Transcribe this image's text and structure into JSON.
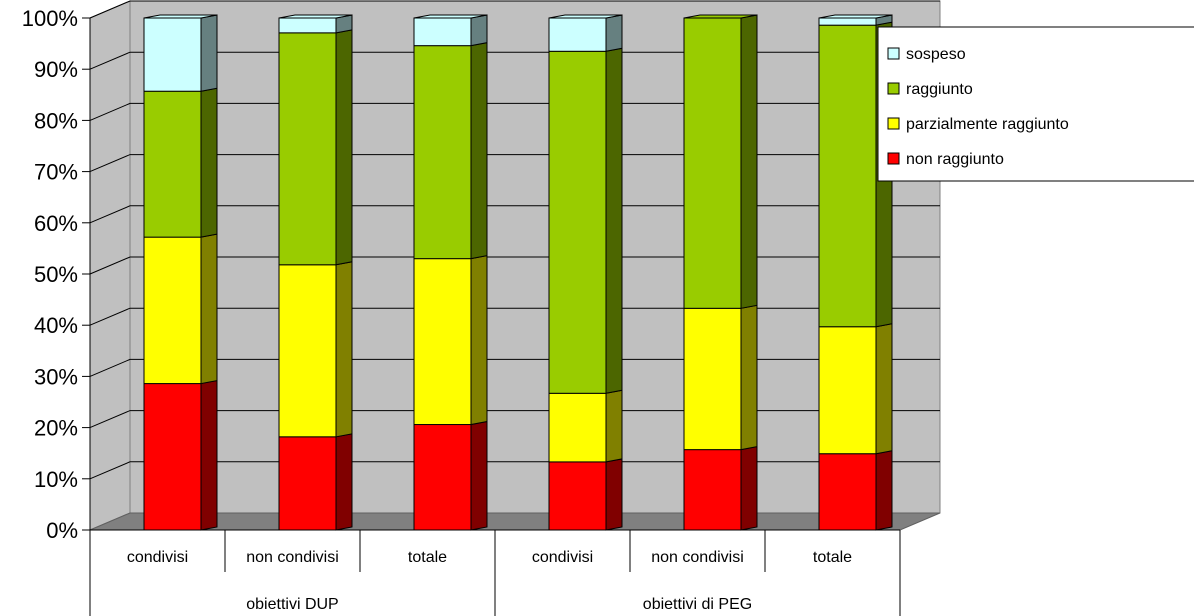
{
  "chart_data": {
    "type": "bar",
    "stacked": true,
    "percent_stacked": true,
    "three_d": true,
    "y_tick_labels": [
      "0%",
      "10%",
      "20%",
      "30%",
      "40%",
      "50%",
      "60%",
      "70%",
      "80%",
      "90%",
      "100%"
    ],
    "ylim": [
      0,
      100
    ],
    "grid": true,
    "legend_position": "right",
    "categories": [
      "condivisi",
      "non condivisi",
      "totale",
      "condivisi",
      "non condivisi",
      "totale"
    ],
    "groups": [
      {
        "label": "obiettivi DUP",
        "span": 3
      },
      {
        "label": "obiettivi di PEG",
        "span": 3
      }
    ],
    "series": [
      {
        "name": "non raggiunto",
        "color": "#ff0000",
        "side_color": "#800000",
        "values": [
          28.6,
          18.2,
          20.6,
          13.3,
          15.7,
          14.9
        ]
      },
      {
        "name": "parzialmente raggiunto",
        "color": "#ffff00",
        "side_color": "#808000",
        "values": [
          28.6,
          33.6,
          32.4,
          13.4,
          27.6,
          24.8
        ]
      },
      {
        "name": "raggiunto",
        "color": "#99cc00",
        "side_color": "#4c6600",
        "values": [
          28.5,
          45.3,
          41.6,
          66.8,
          56.7,
          58.9
        ]
      },
      {
        "name": "sospeso",
        "color": "#ccffff",
        "side_color": "#668080",
        "values": [
          14.3,
          2.9,
          5.4,
          6.5,
          0.0,
          1.4
        ]
      }
    ],
    "legend_order": [
      "sospeso",
      "raggiunto",
      "parzialmente raggiunto",
      "non raggiunto"
    ],
    "colors": {
      "wall": "#c0c0c0",
      "floor": "#808080",
      "grid": "#000000"
    }
  }
}
